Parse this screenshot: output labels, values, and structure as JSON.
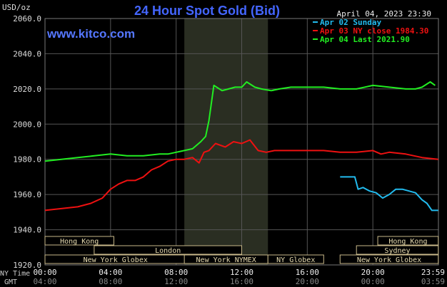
{
  "chart_data": {
    "type": "line",
    "title": "24 Hour Spot Gold (Bid)",
    "watermark": "www.kitco.com",
    "timestamp": "April 04, 2023 23:30",
    "ylabel": "USD/oz",
    "ylim": [
      1920,
      2060
    ],
    "y_ticks": [
      "1920.0",
      "1940.0",
      "1960.0",
      "1980.0",
      "2000.0",
      "2020.0",
      "2040.0",
      "2060.0"
    ],
    "x_ticks_ny": [
      "00:00",
      "04:00",
      "08:00",
      "12:00",
      "16:00",
      "20:00",
      "23:59"
    ],
    "x_ticks_gmt": [
      "04:00",
      "08:00",
      "12:00",
      "16:00",
      "20:00",
      "00:00",
      "03:59"
    ],
    "x_label_ny": "NY Time",
    "x_label_gmt": "GMT",
    "grid": true,
    "legend_position": "top-right",
    "shaded_session": "New York NYMEX",
    "series": [
      {
        "name": "Apr 02 Sunday",
        "color": "#22bbee",
        "x": [
          18.0,
          18.6,
          18.9,
          19.1,
          19.4,
          19.8,
          20.2,
          20.6,
          21.0,
          21.4,
          21.8,
          22.2,
          22.6,
          23.0,
          23.3,
          23.6,
          23.99
        ],
        "y": [
          1970,
          1970,
          1970,
          1963,
          1964,
          1962,
          1961,
          1958,
          1960,
          1963,
          1963,
          1962,
          1961,
          1957,
          1955,
          1951,
          1951
        ]
      },
      {
        "name": "Apr 03 NY close 1984.30",
        "color": "#ee1111",
        "x": [
          0.0,
          1.0,
          2.0,
          2.8,
          3.5,
          4.0,
          4.5,
          5.0,
          5.5,
          6.0,
          6.5,
          7.0,
          7.5,
          8.0,
          8.5,
          9.0,
          9.4,
          9.7,
          10.0,
          10.4,
          11.0,
          11.5,
          12.0,
          12.5,
          13.0,
          13.5,
          14.0,
          15.0,
          16.0,
          17.0,
          18.0,
          19.0,
          20.0,
          20.5,
          21.0,
          22.0,
          23.0,
          23.99
        ],
        "y": [
          1951,
          1952,
          1953,
          1955,
          1958,
          1963,
          1966,
          1968,
          1968,
          1970,
          1974,
          1976,
          1979,
          1980,
          1980,
          1981,
          1978,
          1984,
          1985,
          1989,
          1987,
          1990,
          1989,
          1991,
          1985,
          1984,
          1985,
          1985,
          1985,
          1985,
          1984,
          1984,
          1985,
          1983,
          1984,
          1983,
          1981,
          1980
        ]
      },
      {
        "name": "Apr 04 Last 2021.90",
        "color": "#22ee22",
        "x": [
          0.0,
          1.0,
          2.0,
          3.0,
          4.0,
          5.0,
          6.0,
          7.0,
          7.5,
          8.0,
          8.5,
          9.0,
          9.5,
          9.8,
          10.0,
          10.3,
          10.8,
          11.2,
          11.6,
          12.0,
          12.3,
          12.8,
          13.2,
          13.8,
          14.3,
          15.0,
          16.0,
          17.0,
          18.0,
          19.0,
          20.0,
          21.0,
          22.0,
          22.6,
          23.0,
          23.5,
          23.8
        ],
        "y": [
          1979,
          1980,
          1981,
          1982,
          1983,
          1982,
          1982,
          1983,
          1983,
          1984,
          1985,
          1986,
          1990,
          1993,
          2002,
          2022,
          2019,
          2020,
          2021,
          2021,
          2024,
          2021,
          2020,
          2019,
          2020,
          2021,
          2021,
          2021,
          2020,
          2020,
          2022,
          2021,
          2020,
          2020,
          2021,
          2024,
          2022
        ]
      }
    ],
    "sessions": [
      {
        "label": "Hong Kong",
        "row": 0,
        "start": 0.0,
        "end": 4.2
      },
      {
        "label": "Hong Kong",
        "row": 0,
        "start": 20.3,
        "end": 23.99
      },
      {
        "label": "London",
        "row": 1,
        "start": 3.0,
        "end": 12.0
      },
      {
        "label": "Sydney",
        "row": 1,
        "start": 19.0,
        "end": 23.99
      },
      {
        "label": "New York Globex",
        "row": 2,
        "start": 0.0,
        "end": 8.6
      },
      {
        "label": "New York NYMEX",
        "row": 2,
        "start": 8.5,
        "end": 13.6
      },
      {
        "label": "NY Globex",
        "row": 2,
        "start": 13.6,
        "end": 17.0
      },
      {
        "label": "New York Globex",
        "row": 2,
        "start": 18.0,
        "end": 23.99
      }
    ]
  }
}
